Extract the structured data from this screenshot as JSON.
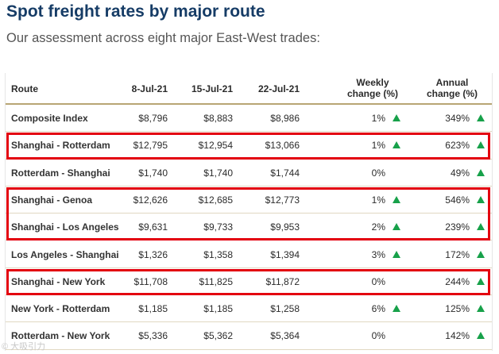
{
  "title": "Spot freight rates by major route",
  "subtitle": "Our assessment across eight major East-West trades:",
  "table": {
    "headers": {
      "route": "Route",
      "c1": "8-Jul-21",
      "c2": "15-Jul-21",
      "c3": "22-Jul-21",
      "weekly_l1": "Weekly",
      "weekly_l2": "change (%)",
      "annual_l1": "Annual",
      "annual_l2": "change (%)"
    },
    "rows": [
      {
        "route": "Composite Index",
        "c1": "$8,796",
        "c2": "$8,883",
        "c3": "$8,986",
        "weekly": "1%",
        "weekly_trend": "up",
        "annual": "349%",
        "annual_trend": "up",
        "highlighted": false
      },
      {
        "route": "Shanghai - Rotterdam",
        "c1": "$12,795",
        "c2": "$12,954",
        "c3": "$13,066",
        "weekly": "1%",
        "weekly_trend": "up",
        "annual": "623%",
        "annual_trend": "up",
        "highlighted": true
      },
      {
        "route": "Rotterdam - Shanghai",
        "c1": "$1,740",
        "c2": "$1,740",
        "c3": "$1,744",
        "weekly": "0%",
        "weekly_trend": "none",
        "annual": "49%",
        "annual_trend": "up",
        "highlighted": false
      },
      {
        "route": "Shanghai - Genoa",
        "c1": "$12,626",
        "c2": "$12,685",
        "c3": "$12,773",
        "weekly": "1%",
        "weekly_trend": "up",
        "annual": "546%",
        "annual_trend": "up",
        "highlighted": true
      },
      {
        "route": "Shanghai - Los Angeles",
        "c1": "$9,631",
        "c2": "$9,733",
        "c3": "$9,953",
        "weekly": "2%",
        "weekly_trend": "up",
        "annual": "239%",
        "annual_trend": "up",
        "highlighted": true
      },
      {
        "route": "Los Angeles - Shanghai",
        "c1": "$1,326",
        "c2": "$1,358",
        "c3": "$1,394",
        "weekly": "3%",
        "weekly_trend": "up",
        "annual": "172%",
        "annual_trend": "up",
        "highlighted": false
      },
      {
        "route": "Shanghai - New York",
        "c1": "$11,708",
        "c2": "$11,825",
        "c3": "$11,872",
        "weekly": "0%",
        "weekly_trend": "none",
        "annual": "244%",
        "annual_trend": "up",
        "highlighted": true
      },
      {
        "route": "New York - Rotterdam",
        "c1": "$1,185",
        "c2": "$1,185",
        "c3": "$1,258",
        "weekly": "6%",
        "weekly_trend": "up",
        "annual": "125%",
        "annual_trend": "up",
        "highlighted": false
      },
      {
        "route": "Rotterdam - New York",
        "c1": "$5,336",
        "c2": "$5,362",
        "c3": "$5,364",
        "weekly": "0%",
        "weekly_trend": "none",
        "annual": "142%",
        "annual_trend": "up",
        "highlighted": false
      }
    ]
  },
  "colors": {
    "title": "#163c66",
    "up_arrow": "#17a14a",
    "highlight_border": "#e3000f",
    "header_rule": "#b8a574"
  },
  "icons": {
    "trend_up": "triangle-up-icon"
  },
  "watermark": "© 大吸引力"
}
